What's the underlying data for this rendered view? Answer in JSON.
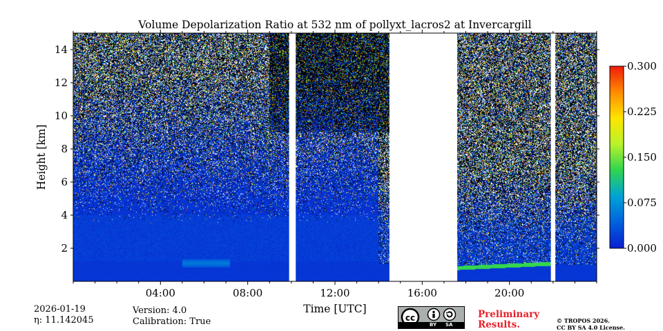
{
  "chart_data": {
    "type": "heatmap",
    "title": "Volume Depolarization Ratio at 532 nm of pollyxt_lacros2 at Invercargill",
    "xlabel": "Time [UTC]",
    "ylabel": "Height [km]",
    "x_unit": "hours UTC",
    "xlim": [
      0,
      24
    ],
    "ylim": [
      0,
      15
    ],
    "x_ticks": [
      {
        "value": 4,
        "label": "04:00"
      },
      {
        "value": 8,
        "label": "08:00"
      },
      {
        "value": 12,
        "label": "12:00"
      },
      {
        "value": 16,
        "label": "16:00"
      },
      {
        "value": 20,
        "label": "20:00"
      }
    ],
    "y_ticks": [
      {
        "value": 2,
        "label": "2"
      },
      {
        "value": 4,
        "label": "4"
      },
      {
        "value": 6,
        "label": "6"
      },
      {
        "value": 8,
        "label": "8"
      },
      {
        "value": 10,
        "label": "10"
      },
      {
        "value": 12,
        "label": "12"
      },
      {
        "value": 14,
        "label": "14"
      }
    ],
    "colorbar": {
      "range": [
        0.0,
        0.3
      ],
      "ticks": [
        {
          "value": 0.0,
          "label": "0.000"
        },
        {
          "value": 0.075,
          "label": "0.075"
        },
        {
          "value": 0.15,
          "label": "0.150"
        },
        {
          "value": 0.225,
          "label": "0.225"
        },
        {
          "value": 0.3,
          "label": "0.300"
        }
      ],
      "colormap": [
        "#0a1fd0",
        "#0062dd",
        "#00a3d6",
        "#2fd54f",
        "#b9f22a",
        "#ffe500",
        "#ff8c00",
        "#f01b0b"
      ]
    },
    "data_segments": [
      {
        "start": 0.0,
        "end": 9.9
      },
      {
        "start": 10.2,
        "end": 14.5
      },
      {
        "start": 17.6,
        "end": 21.9
      },
      {
        "start": 22.1,
        "end": 24.0
      }
    ],
    "no_data_intervals": [
      {
        "start": 9.9,
        "end": 10.2
      },
      {
        "start": 14.5,
        "end": 17.6
      },
      {
        "start": 21.9,
        "end": 22.1
      }
    ],
    "boundary_layer_top_km": {
      "before_gap": 1.2,
      "after_gap": 1.0
    },
    "aerosol_layer": {
      "start": 5.0,
      "end": 7.2,
      "height_km": 1.1,
      "value": 0.06
    },
    "cloud_base_layer": {
      "start": 17.6,
      "end": 21.9,
      "height_km": 0.8,
      "value": 0.13
    }
  },
  "footer": {
    "date": "2026-01-19",
    "eta": "η: 11.142045",
    "version": "Version: 4.0",
    "calibration": "Calibration: True",
    "preliminary_line1": "Preliminary",
    "preliminary_line2": "Results.",
    "copyright_line1": "© TROPOS 2026.",
    "copyright_line2": "CC BY SA 4.0 License.",
    "license_badge": {
      "by": "BY",
      "sa": "SA"
    }
  }
}
